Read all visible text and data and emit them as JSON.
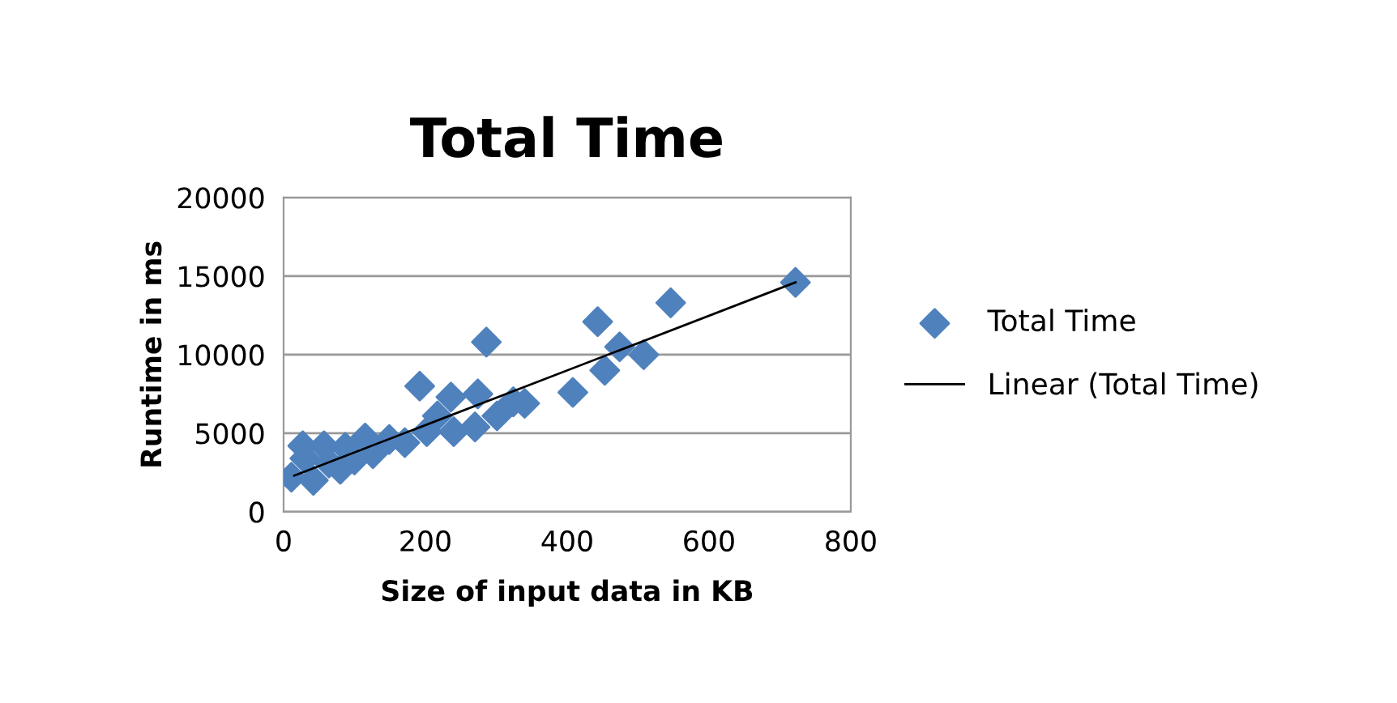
{
  "chart_data": {
    "type": "scatter",
    "title": "Total Time",
    "xlabel": "Size of input data in KB",
    "ylabel": "Runtime in ms",
    "xlim": [
      0,
      800
    ],
    "xticks": [
      0,
      200,
      400,
      600,
      800
    ],
    "ylim": [
      0,
      20000
    ],
    "yticks": [
      0,
      5000,
      10000,
      15000,
      20000
    ],
    "grid": "y",
    "legend": "right",
    "series": [
      {
        "name": "Total Time",
        "marker": "diamond",
        "color": "#4f81bd",
        "x": [
          11,
          42,
          27,
          30,
          57,
          64,
          80,
          87,
          100,
          115,
          126,
          149,
          171,
          192,
          202,
          217,
          236,
          240,
          270,
          274,
          286,
          301,
          324,
          340,
          408,
          443,
          453,
          474,
          508,
          546,
          722
        ],
        "values": [
          2200,
          2000,
          4200,
          3400,
          4200,
          3100,
          2700,
          4100,
          3300,
          4700,
          3700,
          4600,
          4400,
          8000,
          5100,
          6100,
          7300,
          5100,
          5400,
          7500,
          10800,
          6100,
          7000,
          6900,
          7600,
          12100,
          9000,
          10500,
          10000,
          13300,
          14600
        ]
      },
      {
        "name": "Linear (Total Time)",
        "type": "line",
        "marker": "none",
        "line_style": "solid",
        "color": "#000000",
        "x": [
          15,
          722
        ],
        "values": [
          2300,
          14600
        ]
      }
    ]
  }
}
